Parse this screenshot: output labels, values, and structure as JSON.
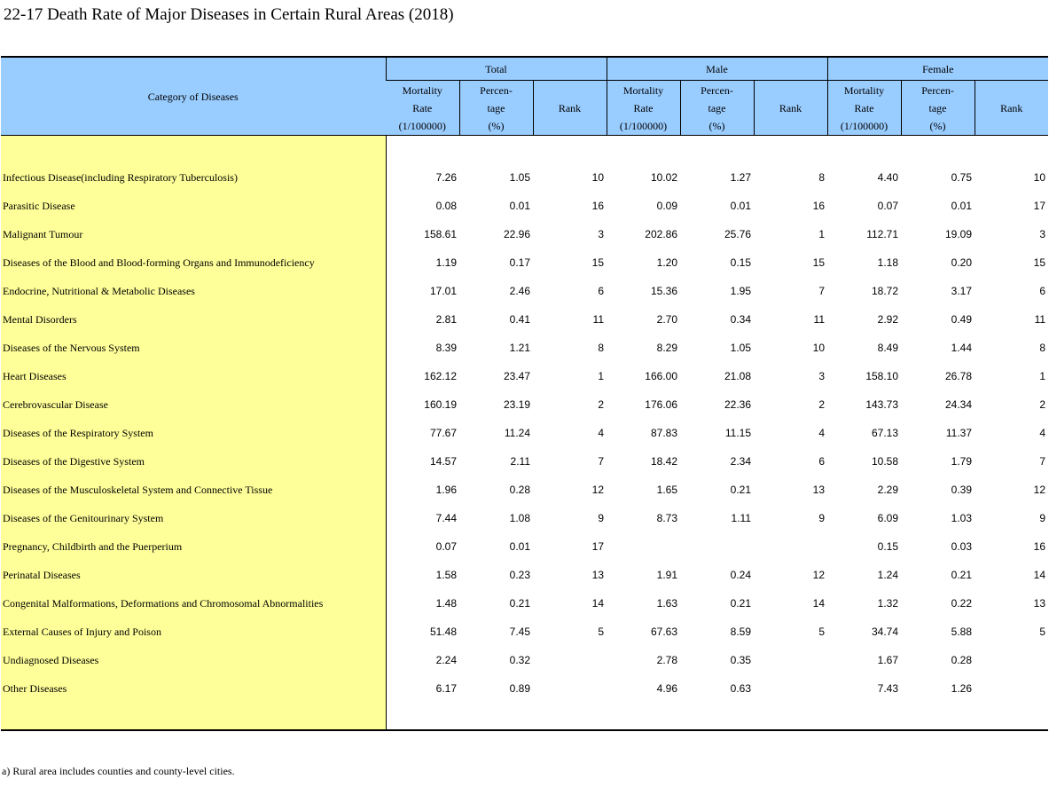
{
  "title": "22-17  Death Rate of Major Diseases in Certain Rural Areas (2018)",
  "header": {
    "category": "Category of Diseases",
    "groups": [
      "Total",
      "Male",
      "Female"
    ],
    "mortality": [
      "Mortality",
      "Rate",
      "(1/100000)"
    ],
    "percentage": [
      "Percen-",
      "tage",
      "(%)"
    ],
    "rank": "Rank"
  },
  "rows": [
    {
      "category": "Infectious Disease(including  Respiratory Tuberculosis)",
      "values": [
        "7.26",
        "1.05",
        "10",
        "10.02",
        "1.27",
        "8",
        "4.40",
        "0.75",
        "10"
      ]
    },
    {
      "category": "Parasitic Disease",
      "values": [
        "0.08",
        "0.01",
        "16",
        "0.09",
        "0.01",
        "16",
        "0.07",
        "0.01",
        "17"
      ]
    },
    {
      "category": "Malignant Tumour",
      "values": [
        "158.61",
        "22.96",
        "3",
        "202.86",
        "25.76",
        "1",
        "112.71",
        "19.09",
        "3"
      ]
    },
    {
      "category": "Diseases of the Blood and  Blood-forming Organs and  Immunodeficiency",
      "values": [
        "1.19",
        "0.17",
        "15",
        "1.20",
        "0.15",
        "15",
        "1.18",
        "0.20",
        "15"
      ]
    },
    {
      "category": "Endocrine, Nutritional &  Metabolic Diseases",
      "values": [
        "17.01",
        "2.46",
        "6",
        "15.36",
        "1.95",
        "7",
        "18.72",
        "3.17",
        "6"
      ]
    },
    {
      "category": "Mental Disorders",
      "values": [
        "2.81",
        "0.41",
        "11",
        "2.70",
        "0.34",
        "11",
        "2.92",
        "0.49",
        "11"
      ]
    },
    {
      "category": "Diseases of the  Nervous System",
      "values": [
        "8.39",
        "1.21",
        "8",
        "8.29",
        "1.05",
        "10",
        "8.49",
        "1.44",
        "8"
      ]
    },
    {
      "category": "Heart Diseases",
      "values": [
        "162.12",
        "23.47",
        "1",
        "166.00",
        "21.08",
        "3",
        "158.10",
        "26.78",
        "1"
      ]
    },
    {
      "category": "Cerebrovascular Disease",
      "values": [
        "160.19",
        "23.19",
        "2",
        "176.06",
        "22.36",
        "2",
        "143.73",
        "24.34",
        "2"
      ]
    },
    {
      "category": "Diseases of the Respiratory  System",
      "values": [
        "77.67",
        "11.24",
        "4",
        "87.83",
        "11.15",
        "4",
        "67.13",
        "11.37",
        "4"
      ]
    },
    {
      "category": "Diseases of the Digestive System",
      "values": [
        "14.57",
        "2.11",
        "7",
        "18.42",
        "2.34",
        "6",
        "10.58",
        "1.79",
        "7"
      ]
    },
    {
      "category": "Diseases of the Musculoskeletal System and Connective Tissue",
      "values": [
        "1.96",
        "0.28",
        "12",
        "1.65",
        "0.21",
        "13",
        "2.29",
        "0.39",
        "12"
      ]
    },
    {
      "category": "Diseases of the Genitourinary System",
      "values": [
        "7.44",
        "1.08",
        "9",
        "8.73",
        "1.11",
        "9",
        "6.09",
        "1.03",
        "9"
      ]
    },
    {
      "category": "Pregnancy, Childbirth  and the Puerperium",
      "values": [
        "0.07",
        "0.01",
        "17",
        "",
        "",
        "",
        "0.15",
        "0.03",
        "16"
      ]
    },
    {
      "category": "Perinatal Diseases",
      "values": [
        "1.58",
        "0.23",
        "13",
        "1.91",
        "0.24",
        "12",
        "1.24",
        "0.21",
        "14"
      ]
    },
    {
      "category": "Congenital Malformations,  Deformations and  Chromosomal Abnormalities",
      "values": [
        "1.48",
        "0.21",
        "14",
        "1.63",
        "0.21",
        "14",
        "1.32",
        "0.22",
        "13"
      ]
    },
    {
      "category": "External Causes of  Injury and Poison",
      "values": [
        "51.48",
        "7.45",
        "5",
        "67.63",
        "8.59",
        "5",
        "34.74",
        "5.88",
        "5"
      ]
    },
    {
      "category": "Undiagnosed Diseases",
      "values": [
        "2.24",
        "0.32",
        "",
        "2.78",
        "0.35",
        "",
        "1.67",
        "0.28",
        ""
      ]
    },
    {
      "category": "Other Diseases",
      "values": [
        "6.17",
        "0.89",
        "",
        "4.96",
        "0.63",
        "",
        "7.43",
        "1.26",
        ""
      ]
    }
  ],
  "footnote": "a) Rural area includes counties and county-level cities."
}
